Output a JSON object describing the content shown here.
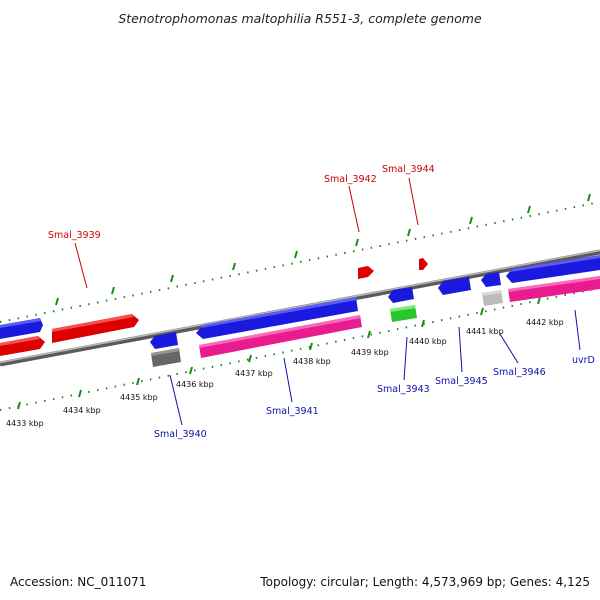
{
  "title": "Stenotrophomonas maltophilia R551-3, complete genome",
  "footer": {
    "accession": "Accession: NC_011071",
    "summary": "Topology: circular; Length: 4,573,969 bp; Genes: 4,125"
  },
  "kbp_labels": [
    "4433 kbp",
    "4434 kbp",
    "4435 kbp",
    "4436 kbp",
    "4437 kbp",
    "4438 kbp",
    "4439 kbp",
    "4440 kbp",
    "4441 kbp",
    "4442 kbp"
  ],
  "genes_top": [
    "Smal_3939",
    "Smal_3942",
    "Smal_3944"
  ],
  "genes_bottom": [
    "Smal_3940",
    "Smal_3941",
    "Smal_3943",
    "Smal_3945",
    "Smal_3946",
    "uvrD"
  ],
  "colors": {
    "forward_cds": "#dd0000",
    "reverse_cds": "#1a1adf",
    "pink_cds": "#e81c8f",
    "green_cds": "#2ec42e",
    "gray_cds": "#777777",
    "light_gray_cds": "#bbbbbb",
    "tick": "#1a8a1a",
    "backbone": "#888888"
  }
}
